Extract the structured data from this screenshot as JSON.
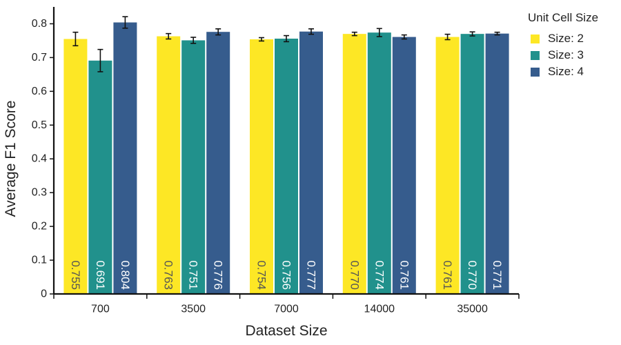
{
  "chart_data": {
    "type": "bar",
    "categories": [
      "700",
      "3500",
      "7000",
      "14000",
      "35000"
    ],
    "series": [
      {
        "name": "Size: 2",
        "color": "#fde725",
        "values": [
          0.755,
          0.763,
          0.754,
          0.77,
          0.761
        ],
        "errors": [
          0.02,
          0.008,
          0.005,
          0.005,
          0.008
        ],
        "labels": [
          "0.755",
          "0.763",
          "0.754",
          "0.770",
          "0.761"
        ],
        "label_color": "#555555"
      },
      {
        "name": "Size: 3",
        "color": "#21918c",
        "values": [
          0.691,
          0.751,
          0.756,
          0.774,
          0.77
        ],
        "errors": [
          0.033,
          0.009,
          0.009,
          0.012,
          0.006
        ],
        "labels": [
          "0.691",
          "0.751",
          "0.756",
          "0.774",
          "0.770"
        ],
        "label_color": "#ffffff"
      },
      {
        "name": "Size: 4",
        "color": "#365c8d",
        "values": [
          0.804,
          0.776,
          0.777,
          0.761,
          0.771
        ],
        "errors": [
          0.017,
          0.009,
          0.008,
          0.006,
          0.004
        ],
        "labels": [
          "0.804",
          "0.776",
          "0.777",
          "0.761",
          "0.771"
        ],
        "label_color": "#ffffff"
      }
    ],
    "xlabel": "Dataset Size",
    "ylabel": "Average F1 Score",
    "ylim": [
      0,
      0.85
    ],
    "yticks": [
      0,
      0.1,
      0.2,
      0.3,
      0.4,
      0.5,
      0.6,
      0.7,
      0.8
    ],
    "ytick_labels": [
      "0",
      "0.1",
      "0.2",
      "0.3",
      "0.4",
      "0.5",
      "0.6",
      "0.7",
      "0.8"
    ],
    "legend_title": "Unit Cell Size",
    "legend_position": "right",
    "grid": false
  }
}
